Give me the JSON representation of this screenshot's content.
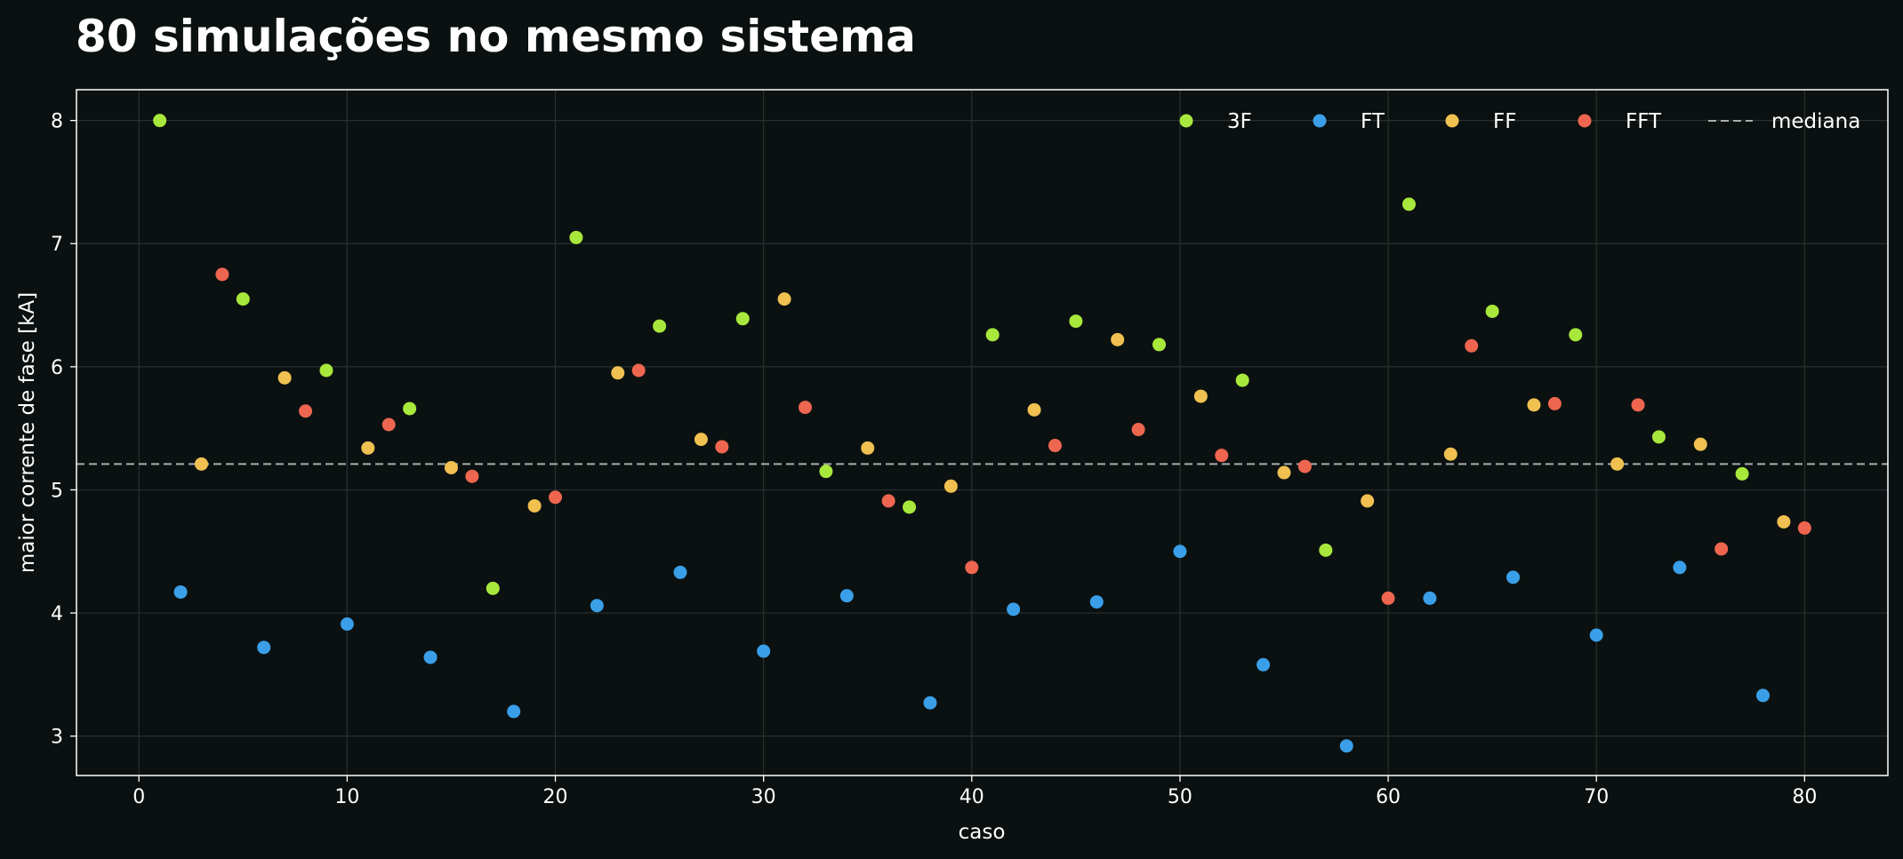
{
  "chart_data": {
    "type": "scatter",
    "title": "80 simulações no mesmo sistema",
    "xlabel": "caso",
    "ylabel": "maior corrente de fase [kA]",
    "xlim": [
      -3,
      84
    ],
    "ylim": [
      2.68,
      8.25
    ],
    "xticks": [
      0,
      10,
      20,
      30,
      40,
      50,
      60,
      70,
      80
    ],
    "yticks": [
      3,
      4,
      5,
      6,
      7,
      8
    ],
    "grid": true,
    "legend_position": "top-right",
    "median": {
      "name": "mediana",
      "value": 5.21,
      "color": "#a9adab"
    },
    "series": [
      {
        "name": "3F",
        "color": "#a8e83c",
        "x": [
          1,
          5,
          9,
          13,
          17,
          21,
          25,
          29,
          33,
          37,
          41,
          45,
          49,
          53,
          57,
          61,
          65,
          69,
          73,
          77
        ],
        "y": [
          8.0,
          6.55,
          5.97,
          5.66,
          4.2,
          7.05,
          6.33,
          6.39,
          5.15,
          4.86,
          6.26,
          6.37,
          6.18,
          5.89,
          4.51,
          7.32,
          6.45,
          6.26,
          5.43,
          5.13
        ]
      },
      {
        "name": "FT",
        "color": "#3a9fe8",
        "x": [
          2,
          6,
          10,
          14,
          18,
          22,
          26,
          30,
          34,
          38,
          42,
          46,
          50,
          54,
          58,
          62,
          66,
          70,
          74,
          78
        ],
        "y": [
          4.17,
          3.72,
          3.91,
          3.64,
          3.2,
          4.06,
          4.33,
          3.69,
          4.14,
          3.27,
          4.03,
          4.09,
          4.5,
          3.58,
          2.92,
          4.12,
          4.29,
          3.82,
          4.37,
          3.33
        ]
      },
      {
        "name": "FF",
        "color": "#f0c050",
        "x": [
          3,
          7,
          11,
          15,
          19,
          23,
          27,
          31,
          35,
          39,
          43,
          47,
          51,
          55,
          59,
          63,
          67,
          71,
          75,
          79
        ],
        "y": [
          5.21,
          5.91,
          5.34,
          5.18,
          4.87,
          5.95,
          5.41,
          6.55,
          5.34,
          5.03,
          5.65,
          6.22,
          5.76,
          5.14,
          4.91,
          5.29,
          5.69,
          5.21,
          5.37,
          4.74
        ]
      },
      {
        "name": "FFT",
        "color": "#ee6650",
        "x": [
          4,
          8,
          12,
          16,
          20,
          24,
          28,
          32,
          36,
          40,
          44,
          48,
          52,
          56,
          60,
          64,
          68,
          72,
          76,
          80
        ],
        "y": [
          6.75,
          5.64,
          5.53,
          5.11,
          4.94,
          5.97,
          5.35,
          5.67,
          4.91,
          4.37,
          5.36,
          5.49,
          5.28,
          5.19,
          4.12,
          6.17,
          5.7,
          5.69,
          4.52,
          4.69
        ]
      }
    ]
  }
}
